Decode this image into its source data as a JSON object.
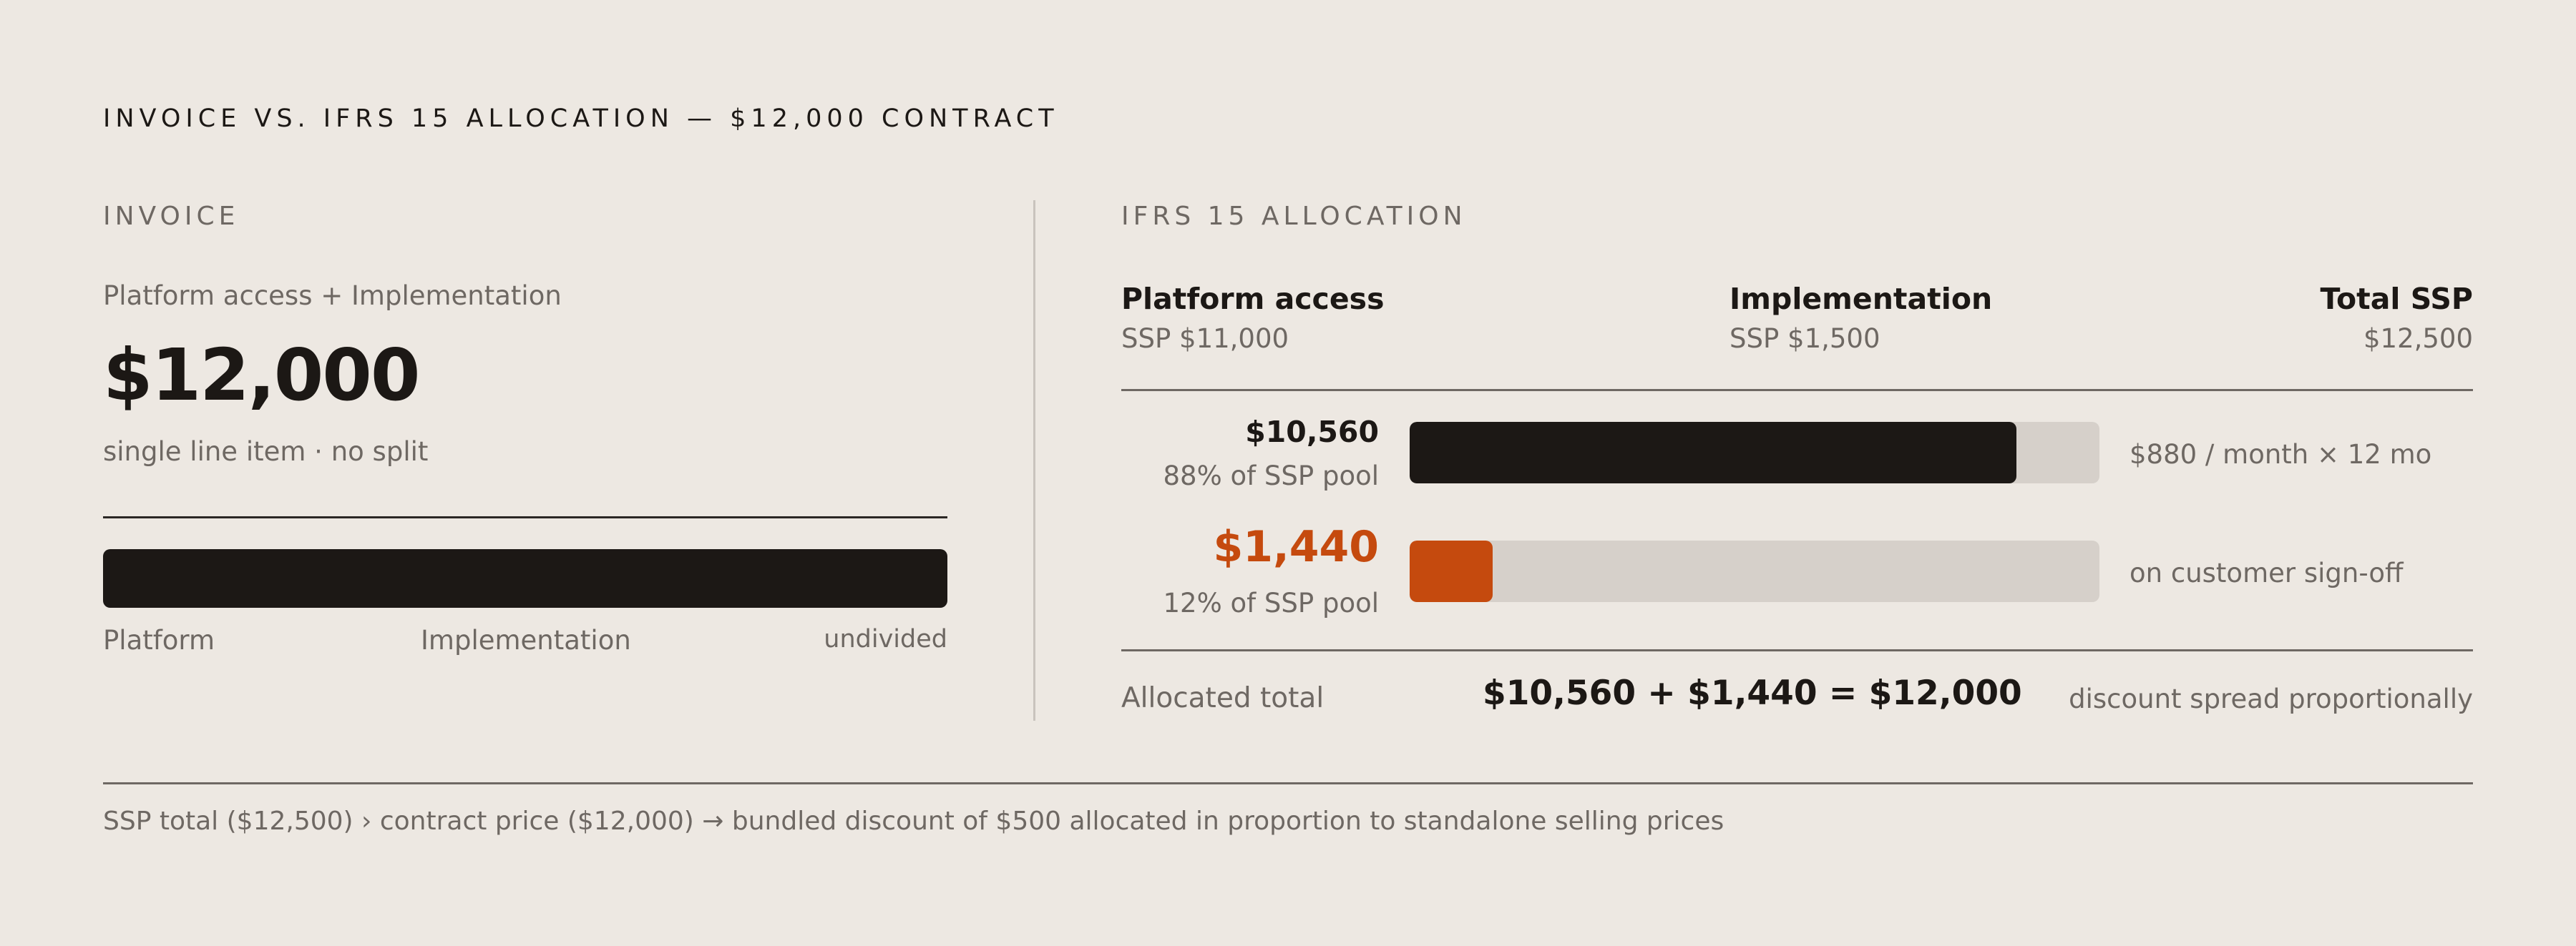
{
  "title": "INVOICE VS. IFRS 15 ALLOCATION — $12,000 CONTRACT",
  "invoice": {
    "section_label": "INVOICE",
    "subtitle": "Platform access + Implementation",
    "amount": "$12,000",
    "note": "single line item · no split",
    "bar_fill_fraction": 1.0,
    "labels": {
      "platform": "Platform",
      "implementation": "Implementation",
      "undivided": "undivided"
    }
  },
  "allocation": {
    "section_label": "IFRS 15 ALLOCATION",
    "columns": [
      {
        "name": "Platform access",
        "ssp": "SSP $11,000"
      },
      {
        "name": "Implementation",
        "ssp": "SSP $1,500"
      },
      {
        "name": "Total SSP",
        "ssp": "$12,500"
      }
    ],
    "rows": [
      {
        "value": "$10,560",
        "pct": "88% of SSP pool",
        "fraction": 0.88,
        "note": "$880 / month × 12 mo",
        "color": "#1c1815"
      },
      {
        "value": "$1,440",
        "pct": "12% of SSP pool",
        "fraction": 0.12,
        "note": "on customer sign-off",
        "color": "#c54a0e"
      }
    ],
    "total": {
      "label": "Allocated total",
      "equation": "$10,560 + $1,440 = $12,000",
      "note": "discount spread proportionally"
    }
  },
  "footnote": "SSP total ($12,500) › contract price ($12,000) → bundled discount of $500 allocated in proportion to standalone selling prices",
  "colors": {
    "background": "#ede8e2",
    "ink": "#1c1815",
    "muted": "#6e6863",
    "track": "#d6d0ca",
    "accent": "#c54a0e"
  }
}
